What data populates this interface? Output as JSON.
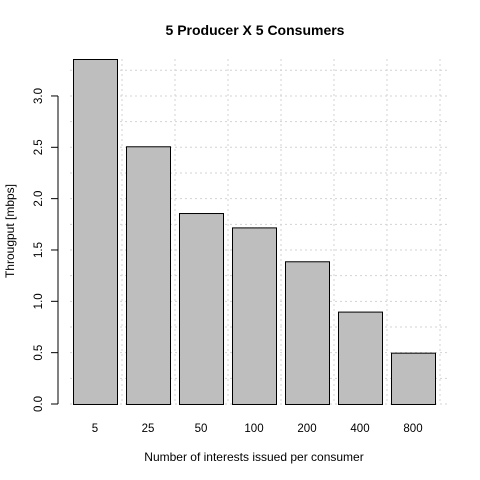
{
  "chart_data": {
    "type": "bar",
    "title": "5 Producer X 5 Consumers",
    "xlabel": "Number of interests issued per consumer",
    "ylabel": "Througput [mbps]",
    "categories": [
      "5",
      "25",
      "50",
      "100",
      "200",
      "400",
      "800"
    ],
    "values": [
      3.36,
      2.51,
      1.86,
      1.72,
      1.39,
      0.9,
      0.5
    ],
    "ylim": [
      0,
      3.36
    ],
    "yticks": [
      0.0,
      0.5,
      1.0,
      1.5,
      2.0,
      2.5,
      3.0
    ],
    "ytick_labels": [
      "0.0",
      "0.5",
      "1.0",
      "1.5",
      "2.0",
      "2.5",
      "3.0"
    ],
    "grid": true,
    "colors": {
      "bar_fill": "#bebebe",
      "bar_stroke": "#000000",
      "grid": "#d3d3d3"
    }
  }
}
